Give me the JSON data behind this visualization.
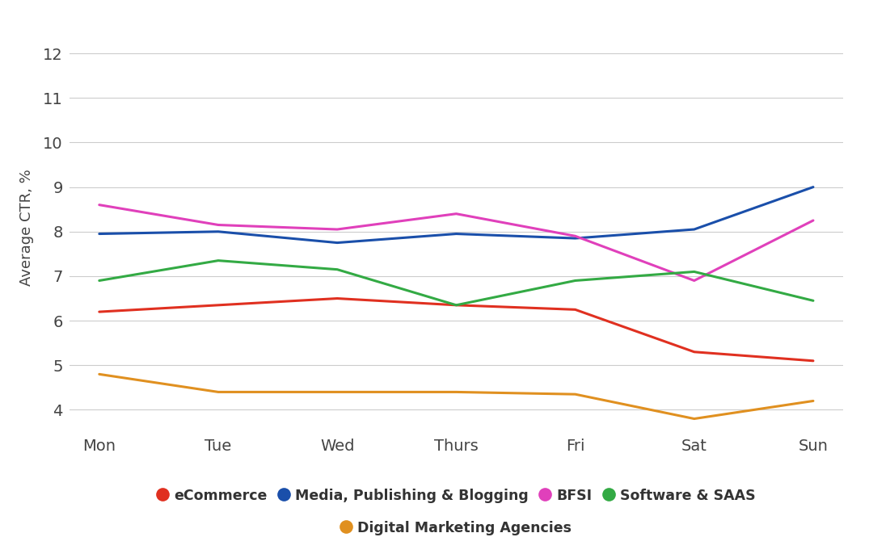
{
  "days": [
    "Mon",
    "Tue",
    "Wed",
    "Thurs",
    "Fri",
    "Sat",
    "Sun"
  ],
  "series": {
    "eCommerce": {
      "values": [
        6.2,
        6.35,
        6.5,
        6.35,
        6.25,
        5.3,
        5.1
      ],
      "color": "#e03020",
      "linewidth": 2.2
    },
    "Media, Publishing & Blogging": {
      "values": [
        7.95,
        8.0,
        7.75,
        7.95,
        7.85,
        8.05,
        9.0
      ],
      "color": "#1a4faa",
      "linewidth": 2.2
    },
    "BFSI": {
      "values": [
        8.6,
        8.15,
        8.05,
        8.4,
        7.9,
        6.9,
        8.25
      ],
      "color": "#e040bb",
      "linewidth": 2.2
    },
    "Software & SAAS": {
      "values": [
        6.9,
        7.35,
        7.15,
        6.35,
        6.9,
        7.1,
        6.45
      ],
      "color": "#33aa44",
      "linewidth": 2.2
    },
    "Digital Marketing Agencies": {
      "values": [
        4.8,
        4.4,
        4.4,
        4.4,
        4.35,
        3.8,
        4.2
      ],
      "color": "#e09020",
      "linewidth": 2.2
    }
  },
  "ylabel": "Average CTR, %",
  "ylim": [
    3.5,
    12.7
  ],
  "yticks": [
    4,
    5,
    6,
    7,
    8,
    9,
    10,
    11,
    12
  ],
  "background_color": "#ffffff",
  "grid_color": "#cccccc",
  "legend_order": [
    "eCommerce",
    "Media, Publishing & Blogging",
    "BFSI",
    "Software & SAAS",
    "Digital Marketing Agencies"
  ],
  "tick_fontsize": 14,
  "ylabel_fontsize": 13,
  "legend_fontsize": 12.5
}
